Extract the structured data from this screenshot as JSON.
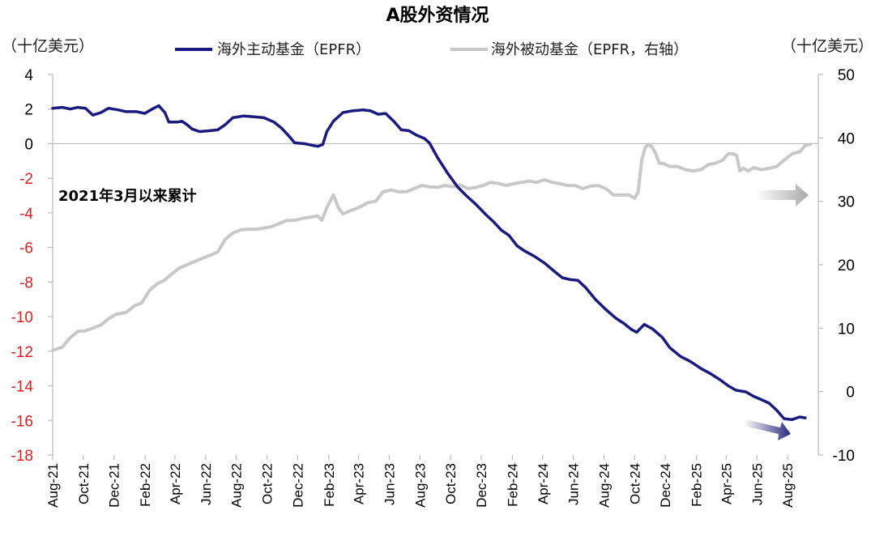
{
  "chart_data": {
    "type": "line",
    "title": "A股外资情况",
    "ylabel_left": "（十亿美元）",
    "ylabel_right": "（十亿美元）",
    "annotation": "2021年3月以来累计",
    "ylim_left": [
      -18,
      4
    ],
    "ylim_right": [
      -10,
      50
    ],
    "yticks_left": [
      "4",
      "2",
      "0",
      "-2",
      "-4",
      "-6",
      "-8",
      "-10",
      "-12",
      "-14",
      "-16",
      "-18"
    ],
    "yticks_right": [
      "50",
      "40",
      "30",
      "20",
      "10",
      "0",
      "-10"
    ],
    "xticks": [
      "Aug-21",
      "Oct-21",
      "Dec-21",
      "Feb-22",
      "Apr-22",
      "Jun-22",
      "Aug-22",
      "Oct-22",
      "Dec-22",
      "Feb-23",
      "Apr-23",
      "Jun-23",
      "Aug-23",
      "Oct-23",
      "Dec-23",
      "Feb-24",
      "Apr-24",
      "Jun-24",
      "Aug-24",
      "Oct-24",
      "Dec-24",
      "Feb-25",
      "Apr-25",
      "Jun-25",
      "Aug-25"
    ],
    "x_start": "2021-08-01",
    "x_end": "2025-10-01",
    "grid": false,
    "legend_position": "top",
    "colors": {
      "active": "#1a1a80",
      "passive": "#c8c8c8",
      "negative_tick": "#e02020",
      "arrow_active": "#3a3a8c",
      "arrow_passive": "#bbbbbb"
    },
    "series": [
      {
        "name": "海外主动基金（EPFR）",
        "axis": "left",
        "points": [
          [
            "2021-08-01",
            2.05
          ],
          [
            "2021-08-20",
            2.1
          ],
          [
            "2021-09-05",
            2.0
          ],
          [
            "2021-09-20",
            2.1
          ],
          [
            "2021-10-05",
            2.05
          ],
          [
            "2021-10-20",
            1.65
          ],
          [
            "2021-11-05",
            1.8
          ],
          [
            "2021-11-20",
            2.05
          ],
          [
            "2021-12-10",
            1.95
          ],
          [
            "2021-12-25",
            1.85
          ],
          [
            "2022-01-15",
            1.85
          ],
          [
            "2022-01-31",
            1.75
          ],
          [
            "2022-02-15",
            2.0
          ],
          [
            "2022-02-28",
            2.2
          ],
          [
            "2022-03-12",
            1.8
          ],
          [
            "2022-03-20",
            1.25
          ],
          [
            "2022-04-05",
            1.25
          ],
          [
            "2022-04-15",
            1.3
          ],
          [
            "2022-04-25",
            1.1
          ],
          [
            "2022-05-05",
            0.85
          ],
          [
            "2022-05-20",
            0.7
          ],
          [
            "2022-06-10",
            0.75
          ],
          [
            "2022-06-25",
            0.8
          ],
          [
            "2022-07-10",
            1.1
          ],
          [
            "2022-07-25",
            1.5
          ],
          [
            "2022-08-15",
            1.6
          ],
          [
            "2022-09-05",
            1.55
          ],
          [
            "2022-09-25",
            1.5
          ],
          [
            "2022-10-15",
            1.25
          ],
          [
            "2022-10-30",
            0.9
          ],
          [
            "2022-11-15",
            0.4
          ],
          [
            "2022-11-25",
            0.05
          ],
          [
            "2022-12-15",
            0.0
          ],
          [
            "2022-12-31",
            -0.1
          ],
          [
            "2023-01-10",
            -0.15
          ],
          [
            "2023-01-20",
            -0.05
          ],
          [
            "2023-01-28",
            0.7
          ],
          [
            "2023-02-10",
            1.3
          ],
          [
            "2023-03-01",
            1.8
          ],
          [
            "2023-03-20",
            1.9
          ],
          [
            "2023-04-10",
            1.95
          ],
          [
            "2023-04-25",
            1.9
          ],
          [
            "2023-05-10",
            1.7
          ],
          [
            "2023-05-25",
            1.75
          ],
          [
            "2023-06-10",
            1.3
          ],
          [
            "2023-06-25",
            0.8
          ],
          [
            "2023-07-10",
            0.75
          ],
          [
            "2023-07-25",
            0.5
          ],
          [
            "2023-08-10",
            0.3
          ],
          [
            "2023-08-20",
            0.05
          ],
          [
            "2023-09-05",
            -0.8
          ],
          [
            "2023-09-25",
            -1.7
          ],
          [
            "2023-10-15",
            -2.5
          ],
          [
            "2023-11-01",
            -3.0
          ],
          [
            "2023-11-20",
            -3.5
          ],
          [
            "2023-12-10",
            -4.1
          ],
          [
            "2023-12-25",
            -4.5
          ],
          [
            "2024-01-10",
            -5.0
          ],
          [
            "2024-01-25",
            -5.3
          ],
          [
            "2024-02-10",
            -5.9
          ],
          [
            "2024-02-25",
            -6.2
          ],
          [
            "2024-03-15",
            -6.5
          ],
          [
            "2024-04-05",
            -6.9
          ],
          [
            "2024-04-25",
            -7.4
          ],
          [
            "2024-05-10",
            -7.75
          ],
          [
            "2024-05-25",
            -7.85
          ],
          [
            "2024-06-10",
            -7.9
          ],
          [
            "2024-06-25",
            -8.3
          ],
          [
            "2024-07-15",
            -9.0
          ],
          [
            "2024-08-05",
            -9.6
          ],
          [
            "2024-08-25",
            -10.1
          ],
          [
            "2024-09-10",
            -10.4
          ],
          [
            "2024-09-25",
            -10.75
          ],
          [
            "2024-10-05",
            -10.9
          ],
          [
            "2024-10-20",
            -10.45
          ],
          [
            "2024-11-05",
            -10.7
          ],
          [
            "2024-11-25",
            -11.2
          ],
          [
            "2024-12-10",
            -11.8
          ],
          [
            "2024-12-31",
            -12.3
          ],
          [
            "2025-01-20",
            -12.6
          ],
          [
            "2025-02-10",
            -13.0
          ],
          [
            "2025-03-01",
            -13.3
          ],
          [
            "2025-03-20",
            -13.65
          ],
          [
            "2025-04-05",
            -14.0
          ],
          [
            "2025-04-20",
            -14.25
          ],
          [
            "2025-05-10",
            -14.35
          ],
          [
            "2025-05-25",
            -14.6
          ],
          [
            "2025-06-10",
            -14.8
          ],
          [
            "2025-06-25",
            -15.0
          ],
          [
            "2025-07-10",
            -15.4
          ],
          [
            "2025-07-25",
            -15.9
          ],
          [
            "2025-08-10",
            -15.95
          ],
          [
            "2025-08-25",
            -15.8
          ],
          [
            "2025-09-05",
            -15.85
          ]
        ]
      },
      {
        "name": "海外被动基金（EPFR，右轴）",
        "axis": "right",
        "points": [
          [
            "2021-08-01",
            6.5
          ],
          [
            "2021-08-20",
            7.0
          ],
          [
            "2021-09-05",
            8.5
          ],
          [
            "2021-09-20",
            9.5
          ],
          [
            "2021-10-05",
            9.6
          ],
          [
            "2021-10-20",
            10.0
          ],
          [
            "2021-11-05",
            10.5
          ],
          [
            "2021-11-20",
            11.5
          ],
          [
            "2021-12-05",
            12.2
          ],
          [
            "2021-12-25",
            12.5
          ],
          [
            "2022-01-10",
            13.5
          ],
          [
            "2022-01-25",
            14.0
          ],
          [
            "2022-02-10",
            16.0
          ],
          [
            "2022-02-25",
            17.0
          ],
          [
            "2022-03-10",
            17.5
          ],
          [
            "2022-03-25",
            18.5
          ],
          [
            "2022-04-10",
            19.5
          ],
          [
            "2022-04-25",
            20.0
          ],
          [
            "2022-05-10",
            20.5
          ],
          [
            "2022-05-25",
            21.0
          ],
          [
            "2022-06-10",
            21.5
          ],
          [
            "2022-06-25",
            22.0
          ],
          [
            "2022-07-10",
            24.0
          ],
          [
            "2022-07-25",
            25.0
          ],
          [
            "2022-08-10",
            25.5
          ],
          [
            "2022-08-25",
            25.6
          ],
          [
            "2022-09-10",
            25.6
          ],
          [
            "2022-09-25",
            25.8
          ],
          [
            "2022-10-10",
            26.0
          ],
          [
            "2022-10-25",
            26.5
          ],
          [
            "2022-11-10",
            27.0
          ],
          [
            "2022-11-25",
            27.0
          ],
          [
            "2022-12-10",
            27.3
          ],
          [
            "2022-12-25",
            27.5
          ],
          [
            "2023-01-10",
            27.7
          ],
          [
            "2023-01-18",
            27.0
          ],
          [
            "2023-01-28",
            29.0
          ],
          [
            "2023-02-10",
            31.0
          ],
          [
            "2023-02-20",
            29.0
          ],
          [
            "2023-03-01",
            28.0
          ],
          [
            "2023-03-15",
            28.5
          ],
          [
            "2023-04-01",
            29.0
          ],
          [
            "2023-04-20",
            29.8
          ],
          [
            "2023-05-05",
            30.0
          ],
          [
            "2023-05-20",
            31.5
          ],
          [
            "2023-06-05",
            31.8
          ],
          [
            "2023-06-20",
            31.5
          ],
          [
            "2023-07-05",
            31.5
          ],
          [
            "2023-07-20",
            32.0
          ],
          [
            "2023-08-05",
            32.5
          ],
          [
            "2023-08-20",
            32.3
          ],
          [
            "2023-09-05",
            32.2
          ],
          [
            "2023-09-20",
            32.5
          ],
          [
            "2023-10-05",
            32.3
          ],
          [
            "2023-10-20",
            32.6
          ],
          [
            "2023-11-05",
            32.0
          ],
          [
            "2023-11-20",
            32.2
          ],
          [
            "2023-12-05",
            32.5
          ],
          [
            "2023-12-20",
            33.0
          ],
          [
            "2024-01-05",
            32.8
          ],
          [
            "2024-01-20",
            32.5
          ],
          [
            "2024-02-05",
            32.8
          ],
          [
            "2024-02-20",
            33.0
          ],
          [
            "2024-03-05",
            33.2
          ],
          [
            "2024-03-20",
            33.0
          ],
          [
            "2024-04-05",
            33.4
          ],
          [
            "2024-04-20",
            33.0
          ],
          [
            "2024-05-05",
            32.8
          ],
          [
            "2024-05-20",
            32.5
          ],
          [
            "2024-06-05",
            32.5
          ],
          [
            "2024-06-20",
            32.0
          ],
          [
            "2024-07-05",
            32.4
          ],
          [
            "2024-07-20",
            32.5
          ],
          [
            "2024-08-05",
            32.0
          ],
          [
            "2024-08-20",
            31.0
          ],
          [
            "2024-09-05",
            31.0
          ],
          [
            "2024-09-20",
            31.0
          ],
          [
            "2024-10-01",
            30.5
          ],
          [
            "2024-10-08",
            31.5
          ],
          [
            "2024-10-15",
            36.5
          ],
          [
            "2024-10-22",
            38.5
          ],
          [
            "2024-10-29",
            39.0
          ],
          [
            "2024-11-05",
            38.5
          ],
          [
            "2024-11-12",
            37.5
          ],
          [
            "2024-11-19",
            36.0
          ],
          [
            "2024-11-26",
            36.0
          ],
          [
            "2024-12-10",
            35.5
          ],
          [
            "2024-12-25",
            35.5
          ],
          [
            "2025-01-10",
            35.0
          ],
          [
            "2025-01-25",
            34.8
          ],
          [
            "2025-02-10",
            35.0
          ],
          [
            "2025-02-25",
            35.8
          ],
          [
            "2025-03-10",
            36.0
          ],
          [
            "2025-03-25",
            36.5
          ],
          [
            "2025-04-05",
            37.5
          ],
          [
            "2025-04-15",
            37.5
          ],
          [
            "2025-04-22",
            37.2
          ],
          [
            "2025-04-28",
            34.8
          ],
          [
            "2025-05-05",
            35.2
          ],
          [
            "2025-05-15",
            34.8
          ],
          [
            "2025-05-25",
            35.3
          ],
          [
            "2025-06-10",
            35.0
          ],
          [
            "2025-06-25",
            35.2
          ],
          [
            "2025-07-10",
            35.5
          ],
          [
            "2025-07-25",
            36.5
          ],
          [
            "2025-08-10",
            37.5
          ],
          [
            "2025-08-25",
            37.8
          ],
          [
            "2025-09-05",
            38.8
          ],
          [
            "2025-09-15",
            39.0
          ]
        ]
      }
    ]
  }
}
